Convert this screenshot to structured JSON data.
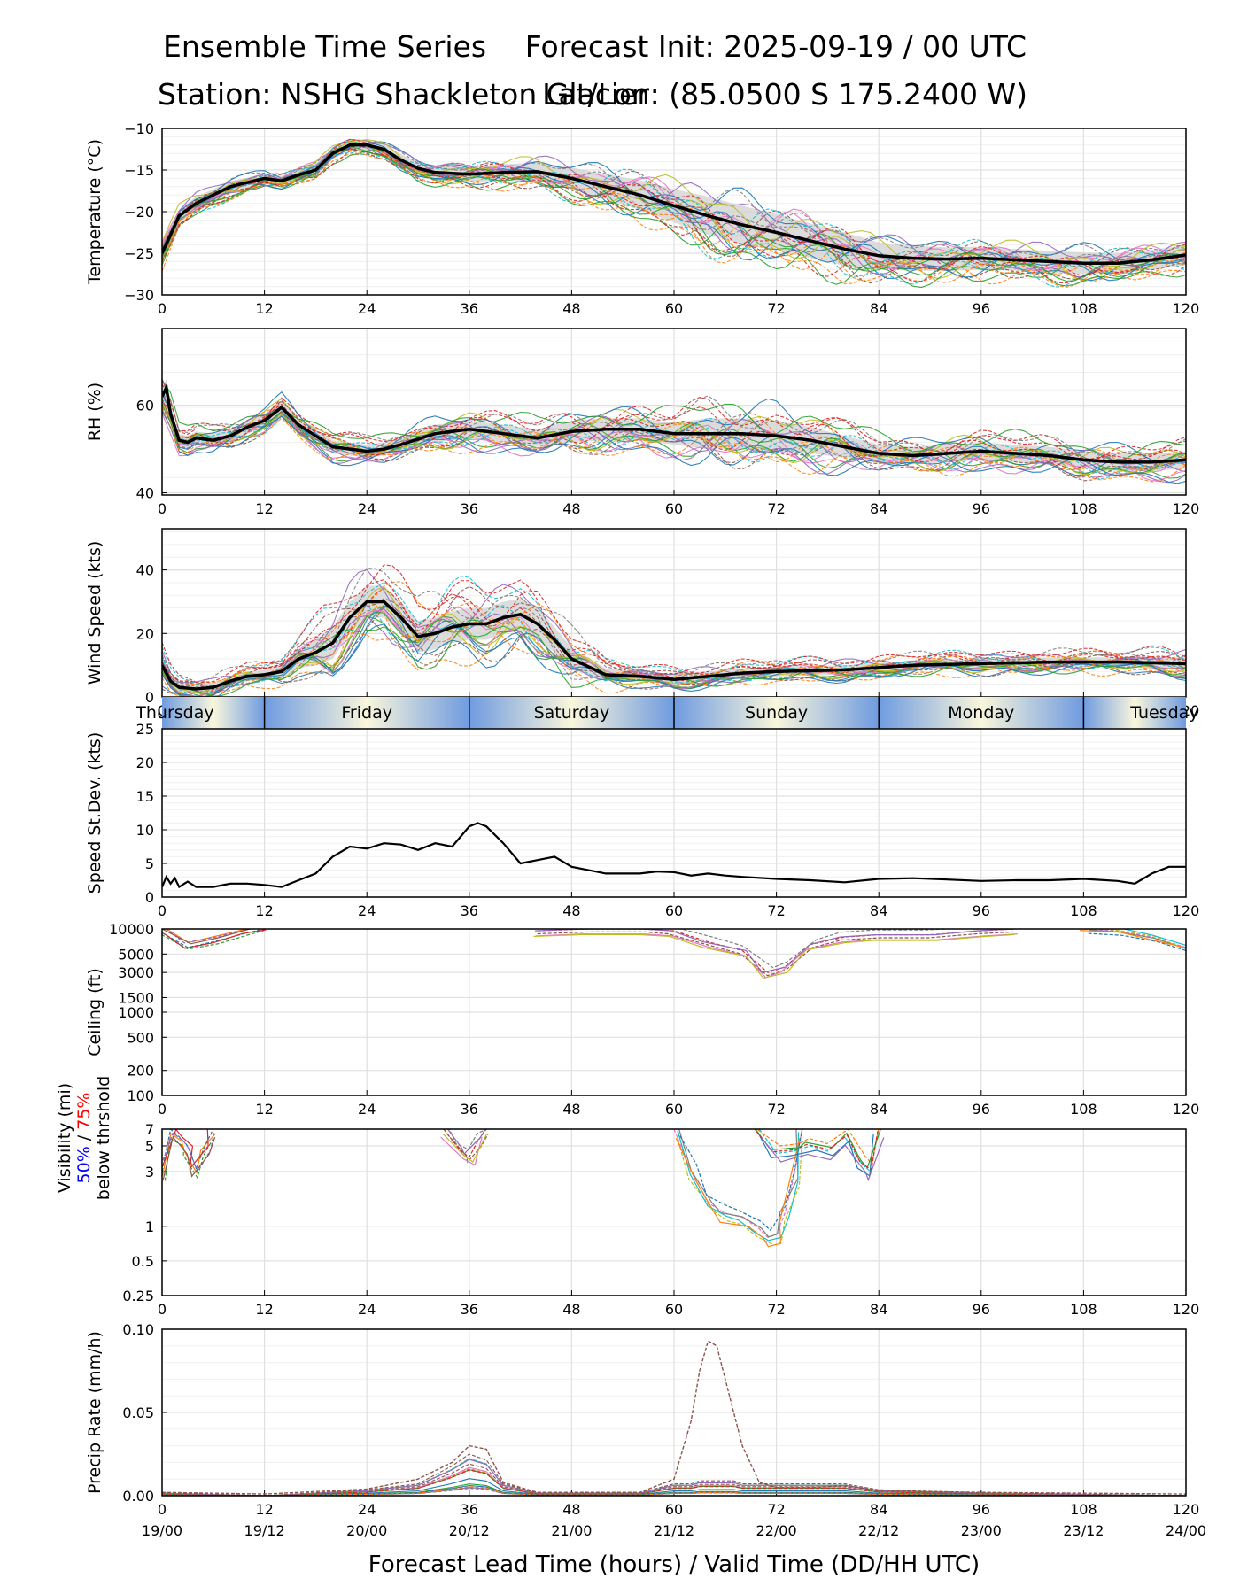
{
  "header": {
    "title": "Ensemble Time Series",
    "station": "Station: NSHG Shackleton Glacier",
    "init": "Forecast Init: 2025-09-19 / 00 UTC",
    "latlon": "Lat/Lon: (85.0500 S 175.2400 W)"
  },
  "xaxis": {
    "label": "Forecast Lead Time (hours) / Valid Time (DD/HH UTC)",
    "ticks": [
      0,
      12,
      24,
      36,
      48,
      60,
      72,
      84,
      96,
      108,
      120
    ],
    "valid_time_labels": [
      "19/00",
      "19/12",
      "20/00",
      "20/12",
      "21/00",
      "21/12",
      "22/00",
      "22/12",
      "23/00",
      "23/12",
      "24/00"
    ]
  },
  "days": [
    "Thursday",
    "Friday",
    "Saturday",
    "Sunday",
    "Monday",
    "Tuesday"
  ],
  "visibility_legend": {
    "line1": "Visibility (mi)",
    "p50": "50%",
    "sep": " / ",
    "p75": "75%",
    "line3": "below thrshold"
  },
  "colors": {
    "mean": "#000000",
    "band": "#d3d3d3",
    "grid": "#e0e0e0",
    "day_blue": "#6f9be0",
    "day_cream": "#f9f6dc",
    "p50": "#0000ff",
    "p75": "#ff0000"
  },
  "chart_data": [
    {
      "type": "line",
      "id": "temperature",
      "ylabel": "Temperature (°C)",
      "ylim": [
        -30,
        -10
      ],
      "yticks": [
        -30,
        -25,
        -20,
        -15,
        -10
      ],
      "ytick_labels": [
        "−30",
        "−25",
        "−20",
        "−15",
        "−10"
      ],
      "x": [
        0,
        2,
        4,
        6,
        8,
        10,
        12,
        14,
        16,
        18,
        20,
        22,
        24,
        26,
        28,
        30,
        32,
        36,
        40,
        44,
        48,
        52,
        56,
        60,
        64,
        68,
        72,
        76,
        80,
        84,
        88,
        92,
        96,
        100,
        104,
        108,
        112,
        116,
        120
      ],
      "series": [
        {
          "name": "ensemble mean",
          "values": [
            -25,
            -20.5,
            -19,
            -18,
            -17,
            -16.5,
            -16,
            -16.3,
            -15.6,
            -15,
            -13,
            -12,
            -12,
            -12.5,
            -13.8,
            -14.8,
            -15.3,
            -15.5,
            -15.3,
            -15.2,
            -16,
            -17,
            -18,
            -19.3,
            -20.5,
            -21.6,
            -22.5,
            -23.5,
            -24.5,
            -25.3,
            -25.6,
            -25.7,
            -25.6,
            -25.8,
            -26,
            -26.2,
            -26.2,
            -25.8,
            -25.2
          ]
        }
      ],
      "band_halfwidth": [
        1,
        0.8,
        0.8,
        0.7,
        0.7,
        0.6,
        0.6,
        0.6,
        0.6,
        0.7,
        0.7,
        0.6,
        0.6,
        0.6,
        0.7,
        0.8,
        0.8,
        0.9,
        1,
        1.1,
        1.3,
        1.5,
        1.8,
        2,
        2.3,
        2.3,
        2.2,
        2.1,
        2,
        1.6,
        1.5,
        1.4,
        1.4,
        1.3,
        1.3,
        1.3,
        1.2,
        1.2,
        1.2
      ]
    },
    {
      "type": "line",
      "id": "rh",
      "ylabel": "RH (%)",
      "ylim": [
        39.5,
        77.5
      ],
      "yticks": [
        40,
        60
      ],
      "ytick_labels": [
        "40",
        "60"
      ],
      "x": [
        0,
        0.5,
        1,
        2,
        3,
        4,
        6,
        8,
        10,
        12,
        14,
        16,
        18,
        20,
        22,
        24,
        26,
        28,
        32,
        36,
        40,
        44,
        48,
        52,
        56,
        60,
        64,
        68,
        72,
        76,
        80,
        84,
        88,
        92,
        96,
        100,
        104,
        108,
        112,
        116,
        120
      ],
      "series": [
        {
          "name": "ensemble mean",
          "values": [
            62,
            64,
            58,
            52,
            51.5,
            52.5,
            52,
            53,
            55,
            56.5,
            59.5,
            55.5,
            53,
            50.5,
            50,
            49.5,
            50,
            51,
            53.5,
            54.5,
            53.5,
            52.5,
            54,
            54.5,
            54.5,
            53.5,
            53.5,
            53.5,
            53,
            52,
            50.5,
            49,
            48.5,
            49,
            49.5,
            49,
            48.5,
            47.5,
            47,
            47,
            47.5
          ]
        }
      ],
      "band_halfwidth": [
        2,
        2,
        2,
        1.5,
        1.5,
        1.5,
        1.5,
        1.5,
        1.5,
        1.5,
        1.5,
        1.5,
        1.5,
        1.5,
        1.5,
        1.5,
        1.5,
        1.5,
        2,
        2,
        2,
        2,
        2.5,
        2.5,
        2.5,
        2.5,
        3.5,
        3.5,
        3.5,
        3,
        2.5,
        2,
        2,
        2,
        2,
        2,
        2,
        2,
        2,
        2,
        2
      ]
    },
    {
      "type": "line",
      "id": "wind",
      "ylabel": "Wind Speed (kts)",
      "ylim": [
        0,
        53
      ],
      "yticks": [
        0,
        20,
        40
      ],
      "ytick_labels": [
        "0",
        "20",
        "40"
      ],
      "x": [
        0,
        1,
        2,
        4,
        6,
        8,
        10,
        12,
        14,
        16,
        18,
        20,
        22,
        24,
        26,
        28,
        30,
        32,
        34,
        36,
        38,
        40,
        42,
        44,
        46,
        48,
        52,
        56,
        60,
        64,
        68,
        72,
        80,
        88,
        96,
        104,
        112,
        120
      ],
      "series": [
        {
          "name": "ensemble mean",
          "values": [
            10,
            5,
            3,
            2.5,
            3,
            5,
            6.5,
            7,
            8,
            12,
            14,
            17,
            25,
            30,
            30,
            25,
            19,
            20,
            22,
            23,
            23,
            25,
            26,
            23,
            18,
            12,
            7,
            6.5,
            5.5,
            6.5,
            7.5,
            8,
            8.5,
            10,
            10.5,
            11,
            11,
            10.5
          ]
        }
      ],
      "band_halfwidth": [
        3,
        2,
        1.5,
        1.5,
        1.5,
        1.5,
        1.5,
        1.5,
        2,
        3,
        4,
        5,
        5,
        5,
        5,
        5,
        5,
        5,
        5,
        5,
        5,
        5,
        5,
        5,
        4,
        3.5,
        2,
        1.5,
        1.5,
        1.5,
        1.5,
        1.5,
        1.5,
        1.5,
        1.5,
        1.5,
        1.5,
        2
      ]
    },
    {
      "type": "line",
      "id": "stdev",
      "ylabel": "Speed St.Dev. (kts)",
      "ylim": [
        0,
        25
      ],
      "yticks": [
        0,
        5,
        10,
        15,
        20,
        25
      ],
      "ytick_labels": [
        "0",
        "5",
        "10",
        "15",
        "20",
        "25"
      ],
      "x": [
        0,
        0.5,
        1,
        1.5,
        2,
        3,
        4,
        6,
        8,
        10,
        12,
        14,
        16,
        18,
        20,
        22,
        24,
        26,
        28,
        30,
        32,
        34,
        36,
        37,
        38,
        40,
        42,
        44,
        46,
        48,
        50,
        52,
        54,
        56,
        58,
        60,
        62,
        64,
        66,
        68,
        72,
        76,
        80,
        84,
        88,
        92,
        96,
        100,
        104,
        108,
        112,
        114,
        116,
        118,
        120
      ],
      "series": [
        {
          "name": "speed standard deviation",
          "values": [
            1.5,
            3,
            2,
            2.8,
            1.5,
            2.3,
            1.5,
            1.5,
            2,
            2,
            1.8,
            1.5,
            2.5,
            3.5,
            6,
            7.5,
            7.2,
            8,
            7.8,
            7,
            8,
            7.5,
            10.5,
            11,
            10.5,
            8,
            5,
            5.5,
            6,
            4.5,
            4,
            3.5,
            3.5,
            3.5,
            3.8,
            3.7,
            3.2,
            3.5,
            3.2,
            3,
            2.7,
            2.5,
            2.2,
            2.7,
            2.8,
            2.6,
            2.4,
            2.5,
            2.5,
            2.7,
            2.4,
            2,
            3.5,
            4.5,
            4.5
          ]
        }
      ]
    },
    {
      "type": "line",
      "id": "ceiling",
      "ylabel": "Ceiling (ft)",
      "yscale": "log",
      "ylim": [
        100,
        10000
      ],
      "yticks": [
        100,
        200,
        500,
        1000,
        1500,
        3000,
        5000,
        10000
      ],
      "ytick_labels": [
        "100",
        "200",
        "500",
        "1000",
        "1500",
        "3000",
        "5000",
        "10000"
      ],
      "series": [
        {
          "name": "member",
          "segments": [
            {
              "x": [
                0,
                3,
                6,
                10,
                12
              ],
              "values": [
                9000,
                6000,
                7000,
                9000,
                10000
              ]
            },
            {
              "x": [
                44,
                50,
                56,
                60,
                64,
                68,
                71,
                73,
                76,
                80,
                84,
                90,
                96,
                100
              ],
              "values": [
                9500,
                10000,
                10000,
                9500,
                7000,
                5500,
                3000,
                3500,
                6500,
                8000,
                8500,
                8500,
                9500,
                10000
              ]
            },
            {
              "x": [
                108,
                112,
                116,
                120
              ],
              "values": [
                10000,
                9500,
                8000,
                6000
              ]
            }
          ]
        }
      ]
    },
    {
      "type": "line",
      "id": "visibility",
      "yscale": "log",
      "ylim": [
        0.25,
        7
      ],
      "yticks": [
        0.25,
        0.5,
        1,
        3,
        5,
        7
      ],
      "ytick_labels": [
        "0.25",
        "0.5",
        "1",
        "3",
        "5",
        "7"
      ],
      "series": [
        {
          "name": "member",
          "segments": [
            {
              "x": [
                0,
                1,
                2,
                3,
                4,
                5,
                6
              ],
              "values": [
                3,
                7,
                6,
                5,
                3.2,
                5,
                7
              ]
            },
            {
              "x": [
                33,
                35,
                36,
                37,
                38
              ],
              "values": [
                7,
                4.5,
                4,
                5.5,
                7
              ]
            },
            {
              "x": [
                60,
                62,
                64,
                66,
                68,
                70,
                71,
                72,
                73,
                74,
                75
              ],
              "values": [
                7,
                3,
                1.6,
                1.3,
                1.2,
                0.95,
                0.8,
                0.85,
                1.3,
                2.6,
                7
              ]
            },
            {
              "x": [
                70,
                72,
                74,
                76,
                78,
                80,
                82,
                83,
                84
              ],
              "values": [
                7,
                4.3,
                4.5,
                5,
                4.5,
                6,
                3.5,
                3,
                7
              ]
            }
          ]
        }
      ]
    },
    {
      "type": "line",
      "id": "precip",
      "ylabel": "Precip Rate (mm/h)",
      "ylim": [
        0,
        0.1
      ],
      "yticks": [
        0,
        0.05,
        0.1
      ],
      "ytick_labels": [
        "0.00",
        "0.05",
        "0.10"
      ],
      "x": [
        0,
        12,
        24,
        30,
        34,
        36,
        38,
        40,
        44,
        48,
        56,
        60,
        62,
        63,
        64,
        65,
        66,
        67,
        68,
        70,
        72,
        76,
        80,
        84,
        96,
        120
      ],
      "series": [
        {
          "name": "member max",
          "values": [
            0.002,
            0.001,
            0.004,
            0.01,
            0.02,
            0.03,
            0.028,
            0.008,
            0.002,
            0.002,
            0.002,
            0.01,
            0.045,
            0.075,
            0.093,
            0.09,
            0.07,
            0.05,
            0.03,
            0.008,
            0.005,
            0.005,
            0.006,
            0.003,
            0.002,
            0.001
          ]
        },
        {
          "name": "member",
          "values": [
            0.001,
            0,
            0.002,
            0.004,
            0.01,
            0.014,
            0.012,
            0.004,
            0.001,
            0.001,
            0.001,
            0.004,
            0.004,
            0.005,
            0.005,
            0.005,
            0.005,
            0.005,
            0.004,
            0.004,
            0.004,
            0.004,
            0.004,
            0.002,
            0.001,
            0
          ]
        }
      ]
    }
  ]
}
